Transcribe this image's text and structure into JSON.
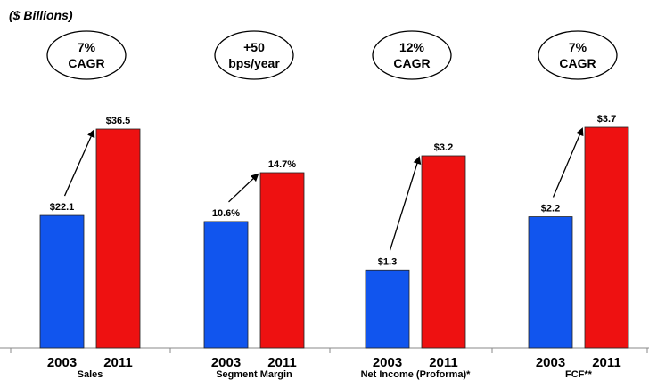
{
  "chart_data": {
    "type": "bar",
    "unit_label": "($ Billions)",
    "series_colors": {
      "2003": "#1155ee",
      "2011": "#ee1111"
    },
    "groups": [
      {
        "name": "Sales",
        "categories": [
          "2003",
          "2011"
        ],
        "values": [
          22.1,
          36.5
        ],
        "value_labels": [
          "$22.1",
          "$36.5"
        ],
        "callout": [
          "7%",
          "CAGR"
        ]
      },
      {
        "name": "Segment Margin",
        "categories": [
          "2003",
          "2011"
        ],
        "values": [
          10.6,
          14.7
        ],
        "value_labels": [
          "10.6%",
          "14.7%"
        ],
        "callout": [
          "+50",
          "bps/year"
        ]
      },
      {
        "name": "Net Income (Proforma)*",
        "categories": [
          "2003",
          "2011"
        ],
        "values": [
          1.3,
          3.2
        ],
        "value_labels": [
          "$1.3",
          "$3.2"
        ],
        "callout": [
          "12%",
          "CAGR"
        ]
      },
      {
        "name": "FCF**",
        "categories": [
          "2003",
          "2011"
        ],
        "values": [
          2.2,
          3.7
        ],
        "value_labels": [
          "$2.2",
          "$3.7"
        ],
        "callout": [
          "7%",
          "CAGR"
        ]
      }
    ]
  }
}
